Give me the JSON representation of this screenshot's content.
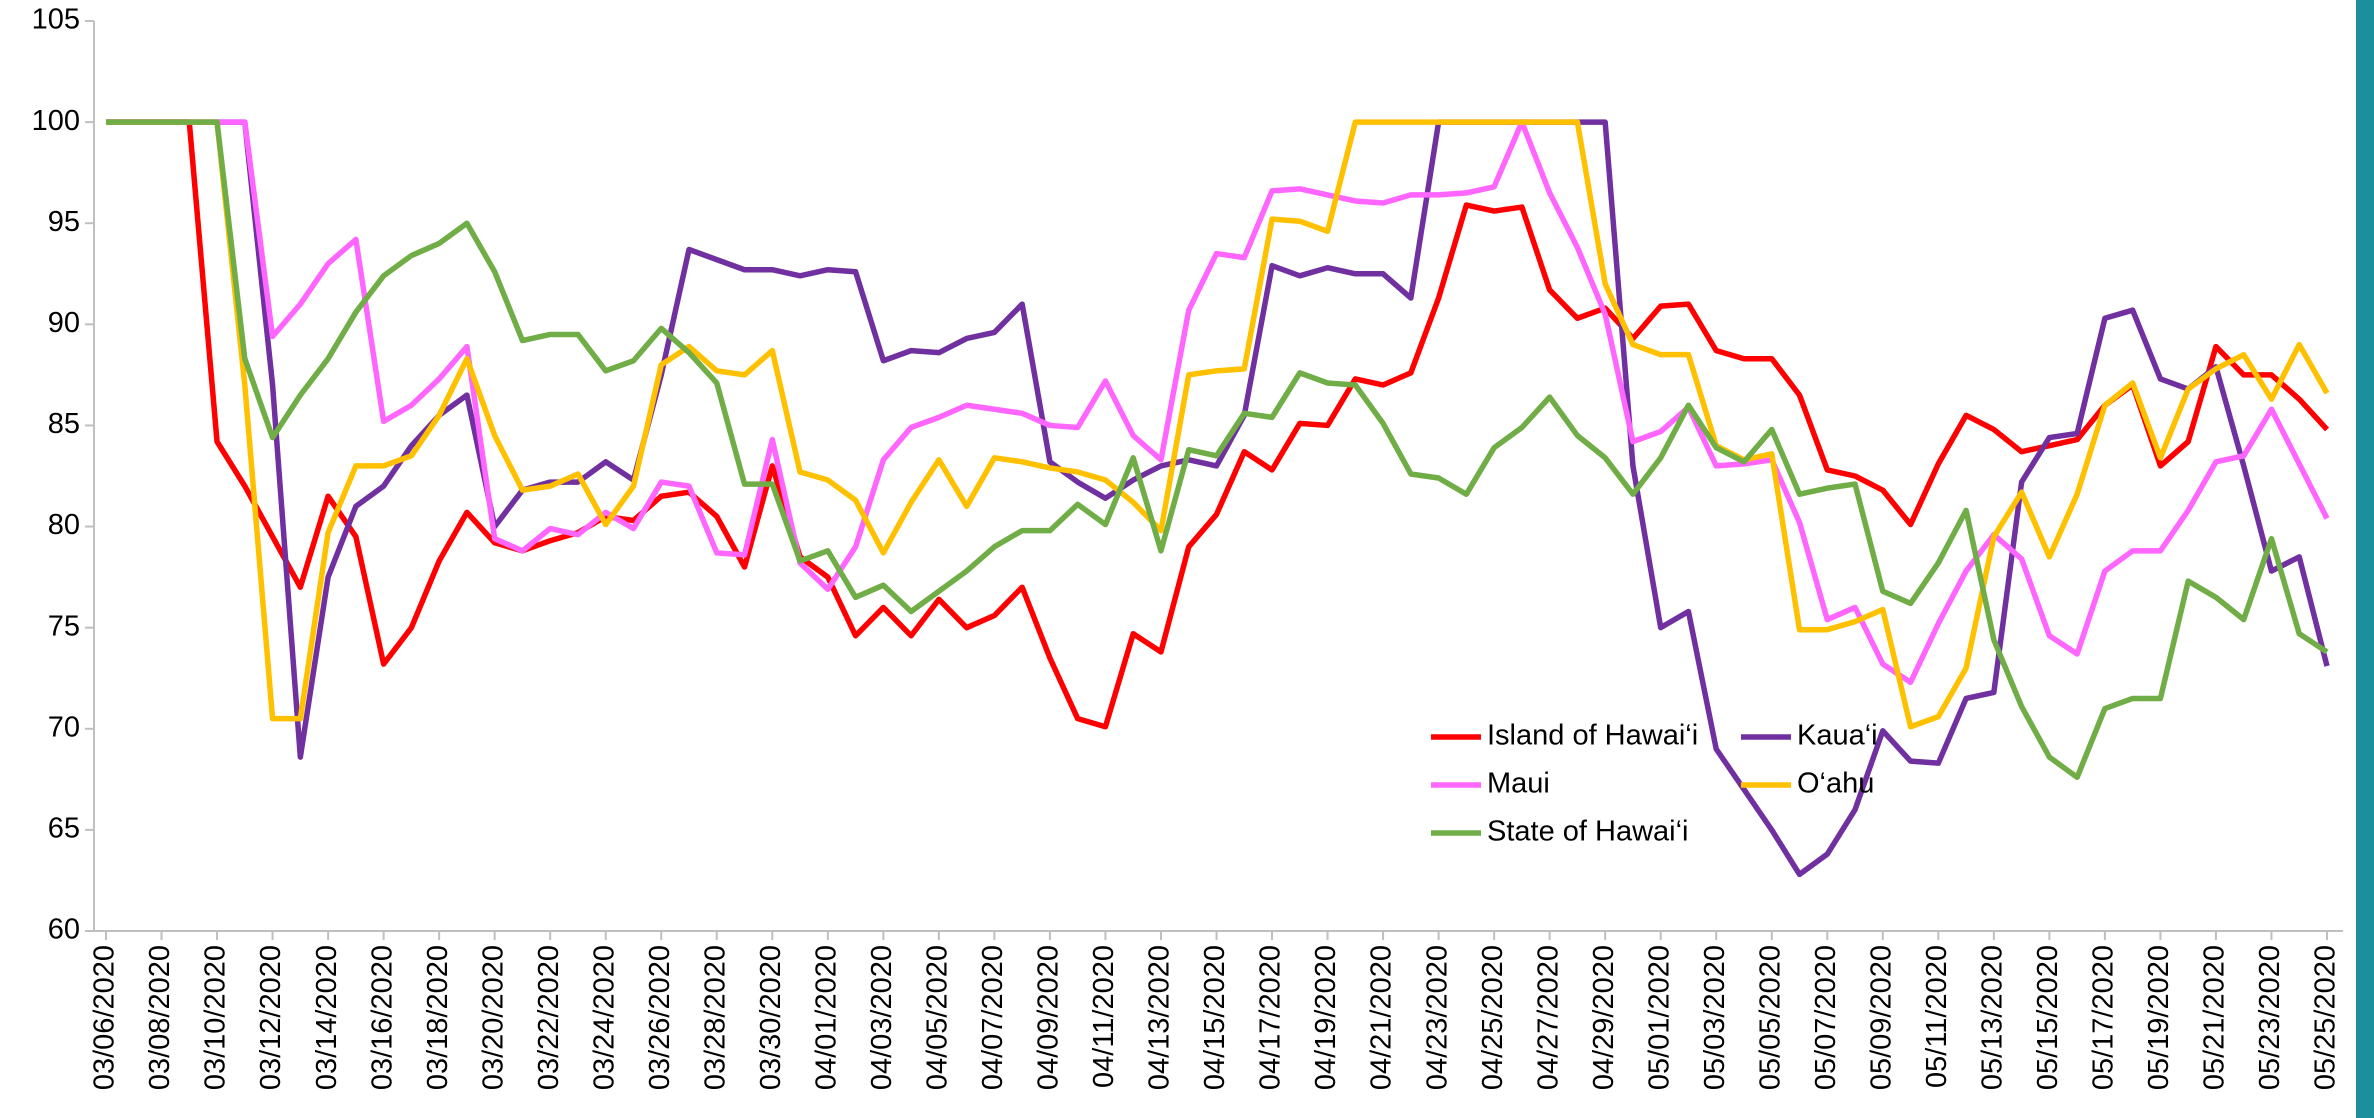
{
  "chart_data": {
    "type": "line",
    "categories": [
      "03/06/2020",
      null,
      "03/08/2020",
      null,
      "03/10/2020",
      null,
      "03/12/2020",
      null,
      "03/14/2020",
      null,
      "03/16/2020",
      null,
      "03/18/2020",
      null,
      "03/20/2020",
      null,
      "03/22/2020",
      null,
      "03/24/2020",
      null,
      "03/26/2020",
      null,
      "03/28/2020",
      null,
      "03/30/2020",
      null,
      "04/01/2020",
      null,
      "04/03/2020",
      null,
      "04/05/2020",
      null,
      "04/07/2020",
      null,
      "04/09/2020",
      null,
      "04/11/2020",
      null,
      "04/13/2020",
      null,
      "04/15/2020",
      null,
      "04/17/2020",
      null,
      "04/19/2020",
      null,
      "04/21/2020",
      null,
      "04/23/2020",
      null,
      "04/25/2020",
      null,
      "04/27/2020",
      null,
      "04/29/2020",
      null,
      "05/01/2020",
      null,
      "05/03/2020",
      null,
      "05/05/2020",
      null,
      "05/07/2020",
      null,
      "05/09/2020",
      null,
      "05/11/2020",
      null,
      "05/13/2020",
      null,
      "05/15/2020",
      null,
      "05/17/2020",
      null,
      "05/19/2020",
      null,
      "05/21/2020",
      null,
      "05/23/2020",
      null,
      "05/25/2020"
    ],
    "series": [
      {
        "name": "Island of Hawai‘i",
        "color": "#ff0000",
        "values": [
          100,
          100,
          100,
          100,
          84.2,
          82,
          79.5,
          77,
          81.5,
          79.5,
          73.2,
          75,
          78.3,
          80.7,
          79.2,
          78.8,
          79.3,
          79.7,
          80.5,
          80.3,
          81.5,
          81.7,
          80.5,
          78,
          83,
          78.5,
          77.5,
          74.6,
          76,
          74.6,
          76.4,
          75,
          75.6,
          77,
          73.5,
          70.5,
          70.1,
          74.7,
          73.8,
          79,
          80.6,
          83.7,
          82.8,
          85.1,
          85,
          87.3,
          87,
          87.6,
          91.3,
          95.9,
          95.6,
          95.8,
          91.7,
          90.3,
          90.8,
          89.3,
          90.9,
          91,
          88.7,
          88.3,
          88.3,
          86.5,
          82.8,
          82.5,
          81.8,
          80.1,
          83.1,
          85.5,
          84.8,
          83.7,
          84,
          84.3,
          86,
          87,
          83,
          84.2,
          88.9,
          87.5,
          87.5,
          86.3,
          84.8
        ]
      },
      {
        "name": "Kaua‘i",
        "color": "#7030a0",
        "values": [
          100,
          100,
          100,
          100,
          100,
          100,
          87,
          68.6,
          77.5,
          81,
          82,
          84,
          85.5,
          86.5,
          80,
          81.8,
          82.2,
          82.2,
          83.2,
          82.3,
          87.5,
          93.7,
          93.2,
          92.7,
          92.7,
          92.4,
          92.7,
          92.6,
          88.2,
          88.7,
          88.6,
          89.3,
          89.6,
          91,
          83.2,
          82.2,
          81.4,
          82.3,
          83,
          83.3,
          83,
          85.5,
          92.9,
          92.4,
          92.8,
          92.5,
          92.5,
          91.3,
          100,
          100,
          100,
          100,
          100,
          100,
          100,
          83,
          75,
          75.8,
          69,
          67,
          65,
          62.8,
          63.8,
          66,
          69.9,
          68.4,
          68.3,
          71.5,
          71.8,
          82.2,
          84.4,
          84.6,
          90.3,
          90.7,
          87.3,
          86.8,
          87.9,
          83,
          77.8,
          78.5,
          73.1
        ]
      },
      {
        "name": "Maui",
        "color": "#ff66ff",
        "values": [
          100,
          100,
          100,
          100,
          100,
          100,
          89.4,
          91,
          93,
          94.2,
          85.2,
          86,
          87.3,
          88.9,
          79.4,
          78.8,
          79.9,
          79.6,
          80.7,
          79.9,
          82.2,
          82,
          78.7,
          78.6,
          84.3,
          78.2,
          76.9,
          79,
          83.3,
          84.9,
          85.4,
          86,
          85.8,
          85.6,
          85,
          84.9,
          87.2,
          84.5,
          83.3,
          90.7,
          93.5,
          93.3,
          96.6,
          96.7,
          96.4,
          96.1,
          96,
          96.4,
          96.4,
          96.5,
          96.8,
          100,
          96.5,
          93.8,
          90.5,
          84.2,
          84.7,
          85.9,
          83,
          83.1,
          83.3,
          80.2,
          75.4,
          76,
          73.2,
          72.3,
          75.2,
          77.8,
          79.6,
          78.4,
          74.6,
          73.7,
          77.8,
          78.8,
          78.8,
          80.8,
          83.2,
          83.5,
          85.8,
          83.1,
          80.4
        ]
      },
      {
        "name": "O‘ahu",
        "color": "#ffc000",
        "values": [
          100,
          100,
          100,
          100,
          100,
          87,
          70.5,
          70.5,
          79.7,
          83,
          83,
          83.5,
          85.5,
          88.3,
          84.5,
          81.8,
          82,
          82.6,
          80.1,
          82,
          88,
          88.9,
          87.7,
          87.5,
          88.7,
          82.7,
          82.3,
          81.3,
          78.7,
          81.2,
          83.3,
          81,
          83.4,
          83.2,
          82.9,
          82.7,
          82.3,
          81.2,
          79.8,
          87.5,
          87.7,
          87.8,
          95.2,
          95.1,
          94.6,
          100,
          100,
          100,
          100,
          100,
          100,
          100,
          100,
          100,
          92,
          89,
          88.5,
          88.5,
          84,
          83.3,
          83.6,
          74.9,
          74.9,
          75.3,
          75.9,
          70.1,
          70.6,
          73,
          79.5,
          81.7,
          78.5,
          81.6,
          86,
          87.1,
          83.4,
          86.8,
          87.8,
          88.5,
          86.3,
          89,
          86.6
        ]
      },
      {
        "name": "State of Hawai‘i",
        "color": "#70ad47",
        "values": [
          100,
          100,
          100,
          100,
          100,
          88.3,
          84.4,
          86.5,
          88.3,
          90.6,
          92.4,
          93.4,
          94,
          95,
          92.6,
          89.2,
          89.5,
          89.5,
          87.7,
          88.2,
          89.8,
          88.6,
          87.1,
          82.1,
          82.1,
          78.3,
          78.8,
          76.5,
          77.1,
          75.8,
          76.8,
          77.8,
          79,
          79.8,
          79.8,
          81.1,
          80.1,
          83.4,
          78.8,
          83.8,
          83.5,
          85.6,
          85.4,
          87.6,
          87.1,
          87,
          85.1,
          82.6,
          82.4,
          81.6,
          83.9,
          84.9,
          86.4,
          84.5,
          83.4,
          81.6,
          83.4,
          86,
          83.9,
          83.2,
          84.8,
          81.6,
          81.9,
          82.1,
          76.8,
          76.2,
          78.2,
          80.8,
          74.4,
          71.1,
          68.6,
          67.6,
          71,
          71.5,
          71.5,
          77.3,
          76.5,
          75.4,
          79.4,
          74.7,
          73.8
        ]
      }
    ],
    "ylim": [
      60,
      105
    ],
    "yticks": [
      60,
      65,
      70,
      75,
      80,
      85,
      90,
      95,
      100,
      105
    ],
    "grid": false,
    "legend_position": "lower-right"
  }
}
